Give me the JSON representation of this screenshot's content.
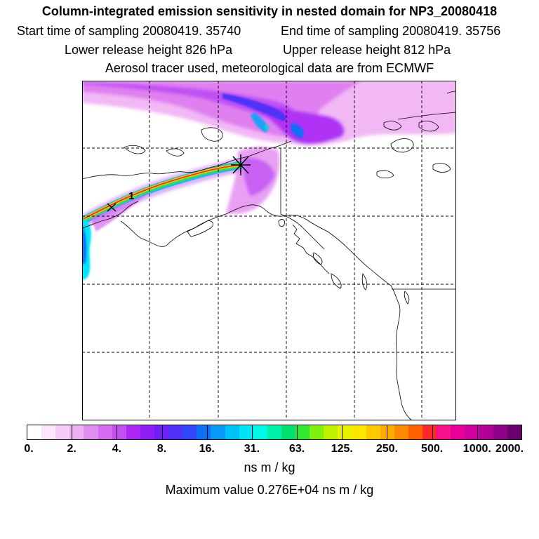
{
  "header": {
    "title": "Column-integrated emission sensitivity in nested domain for NP3_20080418",
    "start_time": "Start time of sampling 20080419. 35740",
    "end_time": "End time of sampling 20080419. 35756",
    "lower_height": "Lower release height  826 hPa",
    "upper_height": "Upper release height  812 hPa",
    "tracer_info": "Aerosol tracer used, meteorological data are from ECMWF"
  },
  "chart_data": {
    "type": "heatmap",
    "title": "Column-integrated emission sensitivity in nested domain for NP3_20080418",
    "colorbar": {
      "tick_labels": [
        "0.",
        "2.",
        "4.",
        "8.",
        "16.",
        "31.",
        "63.",
        "125.",
        "250.",
        "500.",
        "1000.",
        "2000."
      ],
      "tick_values": [
        0,
        2,
        4,
        8,
        16,
        31,
        63,
        125,
        250,
        500,
        1000,
        2000
      ],
      "units": "ns m / kg",
      "colors": [
        "#ffffff",
        "#fbe6fb",
        "#f5ccf5",
        "#ecb0f0",
        "#e08ef0",
        "#d66cf2",
        "#c64cf4",
        "#b026f4",
        "#8f1cf2",
        "#6f20f5",
        "#5030f8",
        "#3048fa",
        "#1070f5",
        "#0898f8",
        "#00c0f8",
        "#00e4f8",
        "#00f8e8",
        "#00f0a8",
        "#00e070",
        "#30e830",
        "#80f010",
        "#c0f000",
        "#e8f000",
        "#ffe400",
        "#ffc800",
        "#ffaa00",
        "#ff8800",
        "#ff6000",
        "#ff2828",
        "#f8108c",
        "#e80098",
        "#d000a0",
        "#b00098",
        "#900088",
        "#6a0070"
      ]
    },
    "max_value_label": "Maximum value  0.276E+04 ns m / kg",
    "max_value": 2760,
    "release_marker": "X",
    "annotation": "1"
  }
}
